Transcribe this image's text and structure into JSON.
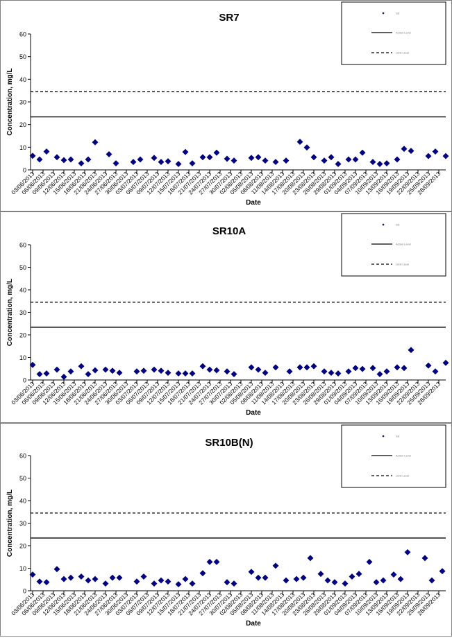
{
  "chart_data": [
    {
      "type": "scatter",
      "title": "SR7",
      "xlabel": "Date",
      "ylabel": "Concentration, mg/L",
      "ylim": [
        0,
        60
      ],
      "yticks": [
        0,
        10,
        20,
        30,
        40,
        50,
        60
      ],
      "grid": false,
      "legend_position": "top-right",
      "date_ticks": [
        "03/06/2013",
        "06/06/2013",
        "09/06/2013",
        "12/06/2013",
        "15/06/2013",
        "18/06/2013",
        "21/06/2013",
        "24/06/2013",
        "27/06/2013",
        "30/06/2013",
        "03/07/2013",
        "06/07/2013",
        "09/07/2013",
        "12/07/2013",
        "15/07/2013",
        "18/07/2013",
        "21/07/2013",
        "24/07/2013",
        "27/07/2013",
        "30/07/2013",
        "02/08/2013",
        "05/08/2013",
        "08/08/2013",
        "11/08/2013",
        "14/08/2013",
        "17/08/2013",
        "20/08/2013",
        "23/08/2013",
        "26/08/2013",
        "29/08/2013",
        "01/09/2013",
        "04/09/2013",
        "07/09/2013",
        "10/09/2013",
        "13/09/2013",
        "16/09/2013",
        "19/09/2013",
        "22/09/2013",
        "25/09/2013",
        "28/09/2013"
      ],
      "legend": [
        "SS",
        "Action Level",
        "Limit Level"
      ],
      "reference_lines": [
        {
          "name": "Action Level",
          "value": 23.4,
          "style": "solid"
        },
        {
          "name": "Limit Level",
          "value": 34.5,
          "style": "dashed"
        }
      ],
      "series": [
        {
          "name": "SS",
          "color": "#000080",
          "points": [
            {
              "x": "03/06/2013",
              "y": 6.2
            },
            {
              "x": "05/06/2013",
              "y": 4.6
            },
            {
              "x": "07/06/2013",
              "y": 8.1
            },
            {
              "x": "10/06/2013",
              "y": 5.6
            },
            {
              "x": "12/06/2013",
              "y": 4.3
            },
            {
              "x": "14/06/2013",
              "y": 4.6
            },
            {
              "x": "17/06/2013",
              "y": 2.9
            },
            {
              "x": "19/06/2013",
              "y": 4.6
            },
            {
              "x": "21/06/2013",
              "y": 12.2
            },
            {
              "x": "25/06/2013",
              "y": 6.9
            },
            {
              "x": "27/06/2013",
              "y": 2.9
            },
            {
              "x": "02/07/2013",
              "y": 3.5
            },
            {
              "x": "04/07/2013",
              "y": 4.6
            },
            {
              "x": "08/07/2013",
              "y": 5.3
            },
            {
              "x": "10/07/2013",
              "y": 3.5
            },
            {
              "x": "12/07/2013",
              "y": 3.8
            },
            {
              "x": "15/07/2013",
              "y": 2.6
            },
            {
              "x": "17/07/2013",
              "y": 7.9
            },
            {
              "x": "19/07/2013",
              "y": 2.9
            },
            {
              "x": "22/07/2013",
              "y": 5.6
            },
            {
              "x": "24/07/2013",
              "y": 5.6
            },
            {
              "x": "26/07/2013",
              "y": 7.6
            },
            {
              "x": "29/07/2013",
              "y": 4.9
            },
            {
              "x": "31/07/2013",
              "y": 4.1
            },
            {
              "x": "05/08/2013",
              "y": 5.3
            },
            {
              "x": "07/08/2013",
              "y": 5.6
            },
            {
              "x": "09/08/2013",
              "y": 4.1
            },
            {
              "x": "12/08/2013",
              "y": 3.5
            },
            {
              "x": "15/08/2013",
              "y": 4.1
            },
            {
              "x": "19/08/2013",
              "y": 12.4
            },
            {
              "x": "21/08/2013",
              "y": 9.9
            },
            {
              "x": "23/08/2013",
              "y": 5.6
            },
            {
              "x": "26/08/2013",
              "y": 4.1
            },
            {
              "x": "28/08/2013",
              "y": 5.6
            },
            {
              "x": "30/08/2013",
              "y": 2.6
            },
            {
              "x": "02/09/2013",
              "y": 4.6
            },
            {
              "x": "04/09/2013",
              "y": 4.6
            },
            {
              "x": "06/09/2013",
              "y": 7.6
            },
            {
              "x": "09/09/2013",
              "y": 3.5
            },
            {
              "x": "11/09/2013",
              "y": 2.6
            },
            {
              "x": "13/09/2013",
              "y": 2.9
            },
            {
              "x": "16/09/2013",
              "y": 4.6
            },
            {
              "x": "18/09/2013",
              "y": 9.3
            },
            {
              "x": "20/09/2013",
              "y": 8.4
            },
            {
              "x": "25/09/2013",
              "y": 6.1
            },
            {
              "x": "27/09/2013",
              "y": 8.1
            },
            {
              "x": "30/09/2013",
              "y": 6.1
            }
          ]
        }
      ]
    },
    {
      "type": "scatter",
      "title": "SR10A",
      "xlabel": "Date",
      "ylabel": "Concentration, mg/L",
      "ylim": [
        0,
        60
      ],
      "yticks": [
        0,
        10,
        20,
        30,
        40,
        50,
        60
      ],
      "grid": false,
      "legend_position": "top-right",
      "date_ticks": [
        "03/06/2013",
        "06/06/2013",
        "09/06/2013",
        "12/06/2013",
        "15/06/2013",
        "18/06/2013",
        "21/06/2013",
        "24/06/2013",
        "27/06/2013",
        "30/06/2013",
        "03/07/2013",
        "06/07/2013",
        "09/07/2013",
        "12/07/2013",
        "15/07/2013",
        "18/07/2013",
        "21/07/2013",
        "24/07/2013",
        "27/07/2013",
        "30/07/2013",
        "02/08/2013",
        "05/08/2013",
        "08/08/2013",
        "11/08/2013",
        "14/08/2013",
        "17/08/2013",
        "20/08/2013",
        "23/08/2013",
        "26/08/2013",
        "29/08/2013",
        "01/09/2013",
        "04/09/2013",
        "07/09/2013",
        "10/09/2013",
        "13/09/2013",
        "16/09/2013",
        "19/09/2013",
        "22/09/2013",
        "25/09/2013",
        "28/09/2013"
      ],
      "legend": [
        "SS",
        "Action Level",
        "Limit Level"
      ],
      "reference_lines": [
        {
          "name": "Action Level",
          "value": 23.4,
          "style": "solid"
        },
        {
          "name": "Limit Level",
          "value": 34.5,
          "style": "dashed"
        }
      ],
      "series": [
        {
          "name": "SS",
          "color": "#000080",
          "points": [
            {
              "x": "03/06/2013",
              "y": 6.7
            },
            {
              "x": "05/06/2013",
              "y": 2.6
            },
            {
              "x": "07/06/2013",
              "y": 2.9
            },
            {
              "x": "10/06/2013",
              "y": 4.6
            },
            {
              "x": "12/06/2013",
              "y": 1.4
            },
            {
              "x": "14/06/2013",
              "y": 3.8
            },
            {
              "x": "17/06/2013",
              "y": 6.1
            },
            {
              "x": "19/06/2013",
              "y": 2.6
            },
            {
              "x": "21/06/2013",
              "y": 4.3
            },
            {
              "x": "24/06/2013",
              "y": 4.6
            },
            {
              "x": "26/06/2013",
              "y": 4.1
            },
            {
              "x": "28/06/2013",
              "y": 3.2
            },
            {
              "x": "03/07/2013",
              "y": 3.8
            },
            {
              "x": "05/07/2013",
              "y": 4.1
            },
            {
              "x": "08/07/2013",
              "y": 4.6
            },
            {
              "x": "10/07/2013",
              "y": 4.1
            },
            {
              "x": "12/07/2013",
              "y": 3.2
            },
            {
              "x": "15/07/2013",
              "y": 2.9
            },
            {
              "x": "17/07/2013",
              "y": 2.9
            },
            {
              "x": "19/07/2013",
              "y": 2.9
            },
            {
              "x": "22/07/2013",
              "y": 6.1
            },
            {
              "x": "24/07/2013",
              "y": 4.6
            },
            {
              "x": "26/07/2013",
              "y": 4.3
            },
            {
              "x": "29/07/2013",
              "y": 3.8
            },
            {
              "x": "31/07/2013",
              "y": 2.6
            },
            {
              "x": "05/08/2013",
              "y": 5.6
            },
            {
              "x": "07/08/2013",
              "y": 4.6
            },
            {
              "x": "09/08/2013",
              "y": 3.2
            },
            {
              "x": "12/08/2013",
              "y": 5.6
            },
            {
              "x": "16/08/2013",
              "y": 3.8
            },
            {
              "x": "19/08/2013",
              "y": 5.6
            },
            {
              "x": "21/08/2013",
              "y": 5.6
            },
            {
              "x": "23/08/2013",
              "y": 6.1
            },
            {
              "x": "26/08/2013",
              "y": 3.8
            },
            {
              "x": "28/08/2013",
              "y": 3.2
            },
            {
              "x": "30/08/2013",
              "y": 2.9
            },
            {
              "x": "02/09/2013",
              "y": 3.8
            },
            {
              "x": "04/09/2013",
              "y": 5.3
            },
            {
              "x": "06/09/2013",
              "y": 4.9
            },
            {
              "x": "09/09/2013",
              "y": 5.3
            },
            {
              "x": "11/09/2013",
              "y": 2.6
            },
            {
              "x": "13/09/2013",
              "y": 3.8
            },
            {
              "x": "16/09/2013",
              "y": 5.6
            },
            {
              "x": "18/09/2013",
              "y": 5.3
            },
            {
              "x": "20/09/2013",
              "y": 13.3
            },
            {
              "x": "25/09/2013",
              "y": 6.4
            },
            {
              "x": "27/09/2013",
              "y": 3.8
            },
            {
              "x": "30/09/2013",
              "y": 7.6
            }
          ]
        }
      ]
    },
    {
      "type": "scatter",
      "title": "SR10B(N)",
      "xlabel": "Date",
      "ylabel": "Concentration, mg/L",
      "ylim": [
        0,
        60
      ],
      "yticks": [
        0,
        10,
        20,
        30,
        40,
        50,
        60
      ],
      "grid": false,
      "legend_position": "top-right",
      "date_ticks": [
        "03/06/2013",
        "06/06/2013",
        "09/06/2013",
        "12/06/2013",
        "15/06/2013",
        "18/06/2013",
        "21/06/2013",
        "24/06/2013",
        "27/06/2013",
        "30/06/2013",
        "03/07/2013",
        "06/07/2013",
        "09/07/2013",
        "12/07/2013",
        "15/07/2013",
        "18/07/2013",
        "21/07/2013",
        "24/07/2013",
        "27/07/2013",
        "30/07/2013",
        "02/08/2013",
        "05/08/2013",
        "08/08/2013",
        "11/08/2013",
        "14/08/2013",
        "17/08/2013",
        "20/08/2013",
        "23/08/2013",
        "26/08/2013",
        "29/08/2013",
        "01/09/2013",
        "04/09/2013",
        "07/09/2013",
        "10/09/2013",
        "13/09/2013",
        "16/09/2013",
        "19/09/2013",
        "22/09/2013",
        "25/09/2013",
        "28/09/2013"
      ],
      "legend": [
        "SS",
        "Action Level",
        "Limit Level"
      ],
      "reference_lines": [
        {
          "name": "Action Level",
          "value": 23.4,
          "style": "solid"
        },
        {
          "name": "Limit Level",
          "value": 34.5,
          "style": "dashed"
        }
      ],
      "series": [
        {
          "name": "SS",
          "color": "#000080",
          "points": [
            {
              "x": "03/06/2013",
              "y": 7.2
            },
            {
              "x": "05/06/2013",
              "y": 4.1
            },
            {
              "x": "07/06/2013",
              "y": 3.8
            },
            {
              "x": "10/06/2013",
              "y": 9.6
            },
            {
              "x": "12/06/2013",
              "y": 5.2
            },
            {
              "x": "14/06/2013",
              "y": 5.8
            },
            {
              "x": "17/06/2013",
              "y": 6.3
            },
            {
              "x": "19/06/2013",
              "y": 4.6
            },
            {
              "x": "21/06/2013",
              "y": 5.2
            },
            {
              "x": "24/06/2013",
              "y": 3.2
            },
            {
              "x": "26/06/2013",
              "y": 5.8
            },
            {
              "x": "28/06/2013",
              "y": 5.8
            },
            {
              "x": "03/07/2013",
              "y": 4.1
            },
            {
              "x": "05/07/2013",
              "y": 6.3
            },
            {
              "x": "08/07/2013",
              "y": 3.2
            },
            {
              "x": "10/07/2013",
              "y": 4.6
            },
            {
              "x": "12/07/2013",
              "y": 4.1
            },
            {
              "x": "15/07/2013",
              "y": 2.9
            },
            {
              "x": "17/07/2013",
              "y": 5.2
            },
            {
              "x": "19/07/2013",
              "y": 3.2
            },
            {
              "x": "22/07/2013",
              "y": 7.8
            },
            {
              "x": "24/07/2013",
              "y": 12.8
            },
            {
              "x": "26/07/2013",
              "y": 12.8
            },
            {
              "x": "29/07/2013",
              "y": 3.8
            },
            {
              "x": "31/07/2013",
              "y": 3.2
            },
            {
              "x": "05/08/2013",
              "y": 8.4
            },
            {
              "x": "07/08/2013",
              "y": 5.8
            },
            {
              "x": "09/08/2013",
              "y": 5.8
            },
            {
              "x": "12/08/2013",
              "y": 11.1
            },
            {
              "x": "15/08/2013",
              "y": 4.6
            },
            {
              "x": "18/08/2013",
              "y": 5.2
            },
            {
              "x": "20/08/2013",
              "y": 5.8
            },
            {
              "x": "22/08/2013",
              "y": 14.5
            },
            {
              "x": "25/08/2013",
              "y": 7.5
            },
            {
              "x": "27/08/2013",
              "y": 4.6
            },
            {
              "x": "29/08/2013",
              "y": 3.8
            },
            {
              "x": "01/09/2013",
              "y": 3.2
            },
            {
              "x": "03/09/2013",
              "y": 6.3
            },
            {
              "x": "05/09/2013",
              "y": 7.5
            },
            {
              "x": "08/09/2013",
              "y": 12.8
            },
            {
              "x": "10/09/2013",
              "y": 3.8
            },
            {
              "x": "12/09/2013",
              "y": 4.6
            },
            {
              "x": "15/09/2013",
              "y": 7.2
            },
            {
              "x": "17/09/2013",
              "y": 5.2
            },
            {
              "x": "19/09/2013",
              "y": 17.1
            },
            {
              "x": "24/09/2013",
              "y": 14.5
            },
            {
              "x": "26/09/2013",
              "y": 4.6
            },
            {
              "x": "29/09/2013",
              "y": 8.7
            }
          ]
        }
      ]
    }
  ]
}
